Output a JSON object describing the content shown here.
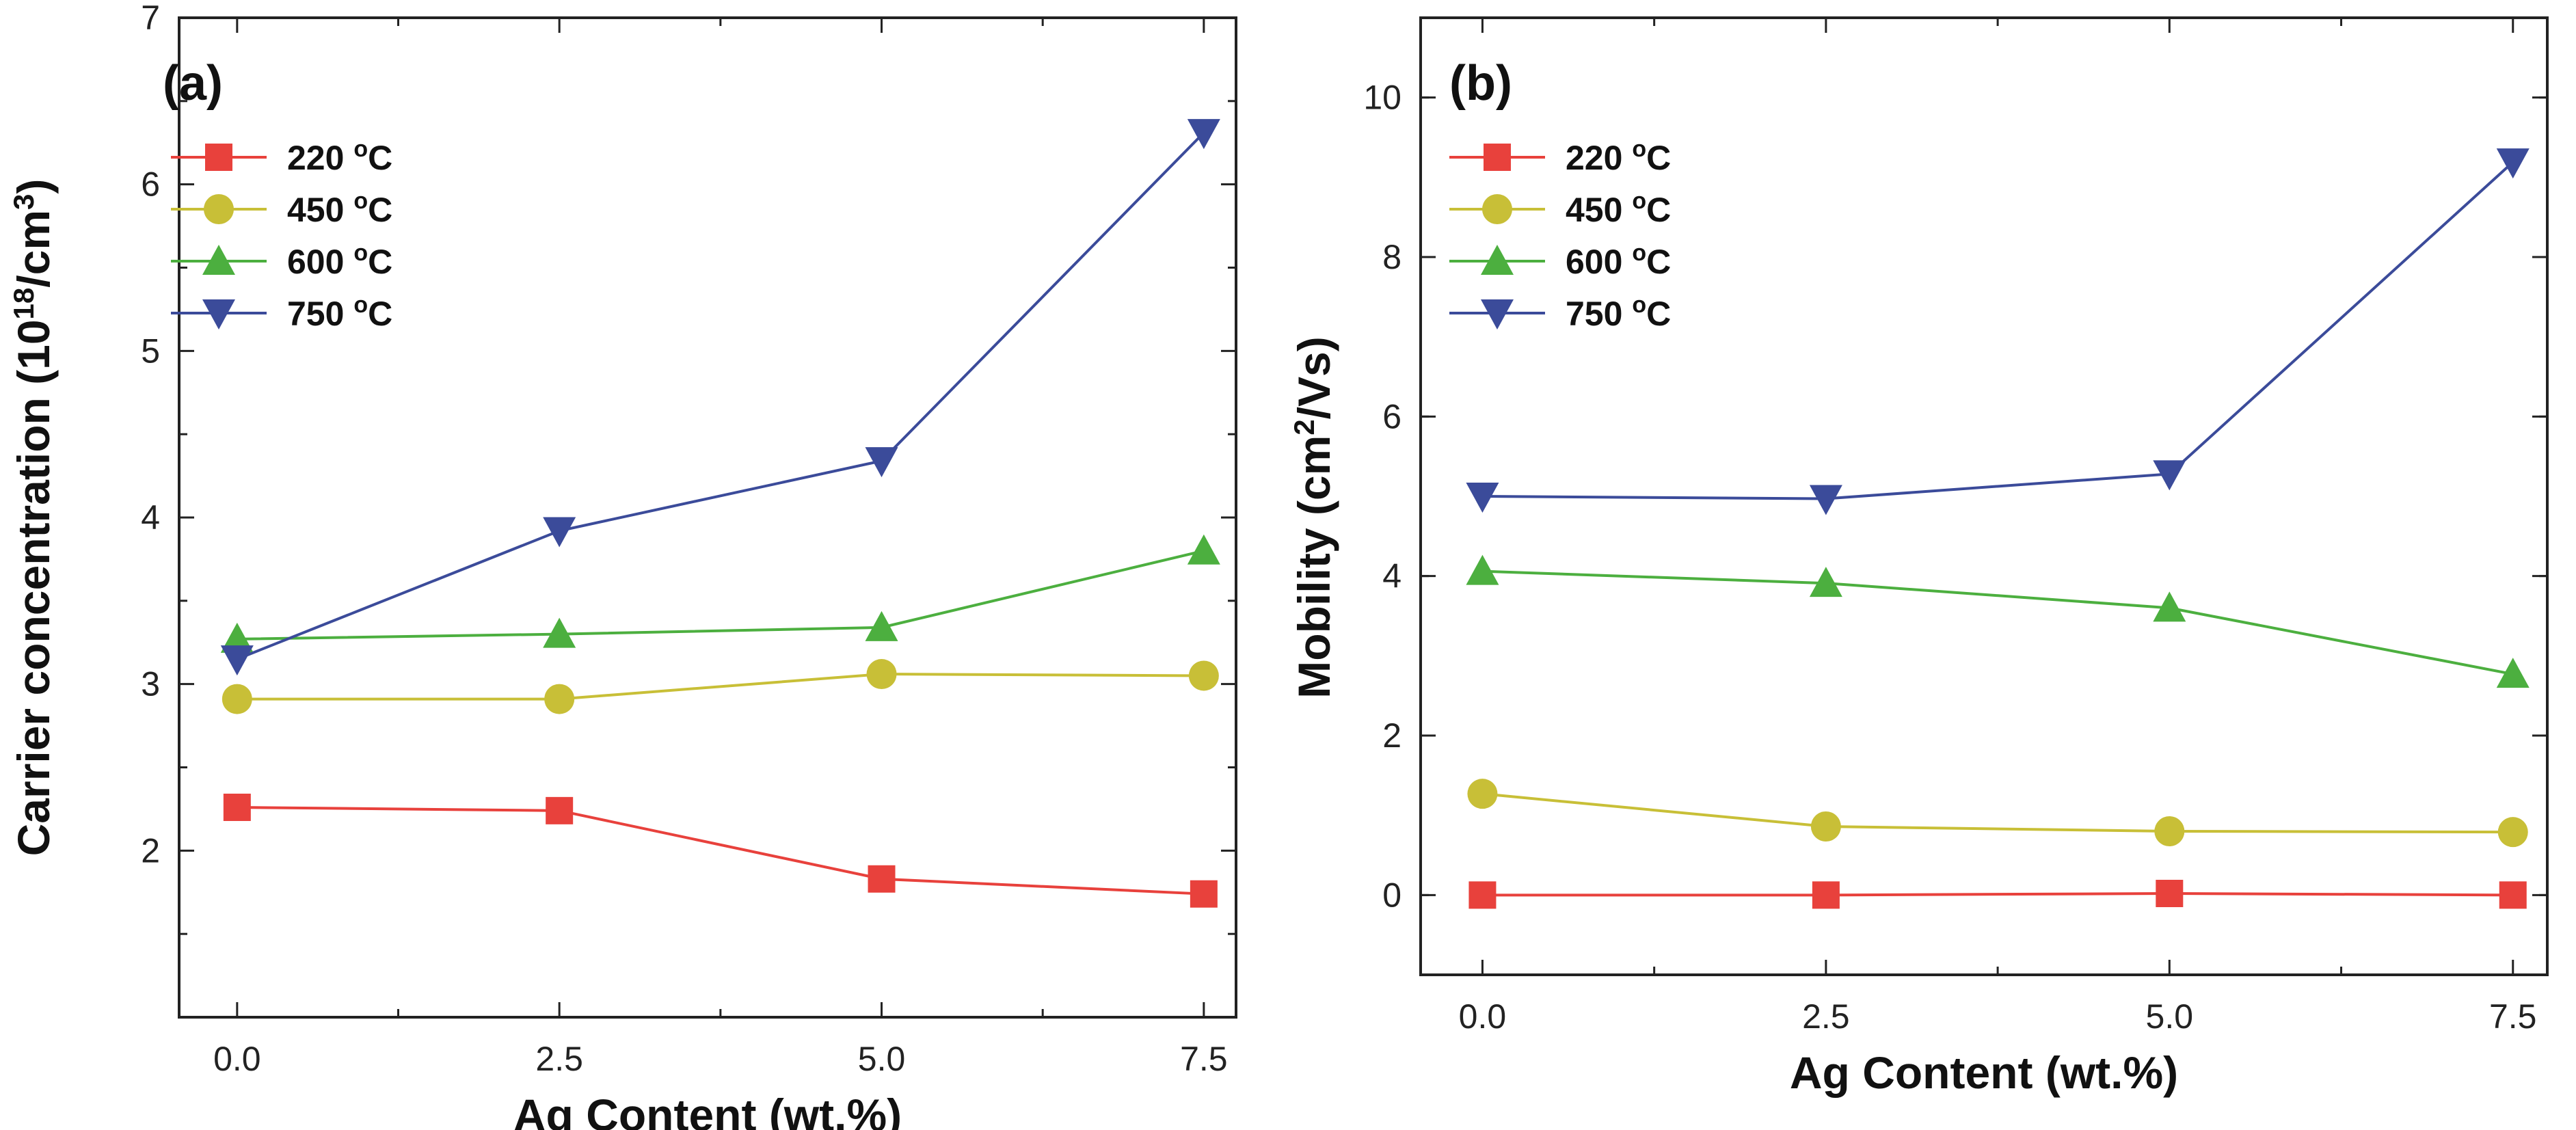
{
  "chart_data": [
    {
      "type": "line",
      "panel": "a",
      "panel_label": "(a)",
      "xlabel": "Ag Content (wt.%)",
      "ylabel": {
        "prefix": "Carrier concentration (10",
        "sup": "18",
        "middle": "/cm",
        "sup2": "3",
        "suffix": ")"
      },
      "x": [
        0.0,
        2.5,
        5.0,
        7.5
      ],
      "xticks": [
        "0.0",
        "2.5",
        "5.0",
        "7.5"
      ],
      "xlim": [
        -0.45,
        7.75
      ],
      "ylim": [
        1.0,
        7.0
      ],
      "yticks": [
        "2",
        "3",
        "4",
        "5",
        "6",
        "7"
      ],
      "yticks_values": [
        2,
        3,
        4,
        5,
        6,
        7
      ],
      "legend_position": "top-left",
      "series": [
        {
          "name": "220 °C",
          "label_main": "220 ",
          "label_sup": "o",
          "label_unit": "C",
          "color": "#e8413c",
          "marker": "square",
          "values": [
            2.26,
            2.24,
            1.83,
            1.74
          ]
        },
        {
          "name": "450 °C",
          "label_main": "450 ",
          "label_sup": "o",
          "label_unit": "C",
          "color": "#c8bf37",
          "marker": "circle",
          "values": [
            2.91,
            2.91,
            3.06,
            3.05
          ]
        },
        {
          "name": "600 °C",
          "label_main": "600 ",
          "label_sup": "o",
          "label_unit": "C",
          "color": "#4caf3f",
          "marker": "triangle-up",
          "values": [
            3.27,
            3.3,
            3.34,
            3.8
          ]
        },
        {
          "name": "750 °C",
          "label_main": "750 ",
          "label_sup": "o",
          "label_unit": "C",
          "color": "#3b4b9a",
          "marker": "triangle-down",
          "values": [
            3.15,
            3.92,
            4.34,
            6.31
          ]
        }
      ]
    },
    {
      "type": "line",
      "panel": "b",
      "panel_label": "(b)",
      "xlabel": "Ag Content (wt.%)",
      "ylabel": {
        "prefix": "Mobility (cm",
        "sup": "2",
        "middle": "/Vs)",
        "sup2": "",
        "suffix": ""
      },
      "x": [
        0.0,
        2.5,
        5.0,
        7.5
      ],
      "xticks": [
        "0.0",
        "2.5",
        "5.0",
        "7.5"
      ],
      "xlim": [
        -0.45,
        7.75
      ],
      "ylim": [
        -1.0,
        11.0
      ],
      "yticks": [
        "0",
        "2",
        "4",
        "6",
        "8",
        "10"
      ],
      "yticks_values": [
        0,
        2,
        4,
        6,
        8,
        10
      ],
      "legend_position": "top-left",
      "series": [
        {
          "name": "220 °C",
          "label_main": "220 ",
          "label_sup": "o",
          "label_unit": "C",
          "color": "#e8413c",
          "marker": "square",
          "values": [
            0.0,
            0.0,
            0.02,
            0.0
          ]
        },
        {
          "name": "450 °C",
          "label_main": "450 ",
          "label_sup": "o",
          "label_unit": "C",
          "color": "#c8bf37",
          "marker": "circle",
          "values": [
            1.27,
            0.86,
            0.8,
            0.79
          ]
        },
        {
          "name": "600 °C",
          "label_main": "600 ",
          "label_sup": "o",
          "label_unit": "C",
          "color": "#4caf3f",
          "marker": "triangle-up",
          "values": [
            4.06,
            3.91,
            3.6,
            2.77
          ]
        },
        {
          "name": "750 °C",
          "label_main": "750 ",
          "label_sup": "o",
          "label_unit": "C",
          "color": "#3b4b9a",
          "marker": "triangle-down",
          "values": [
            5.0,
            4.97,
            5.28,
            9.19
          ]
        }
      ]
    }
  ]
}
